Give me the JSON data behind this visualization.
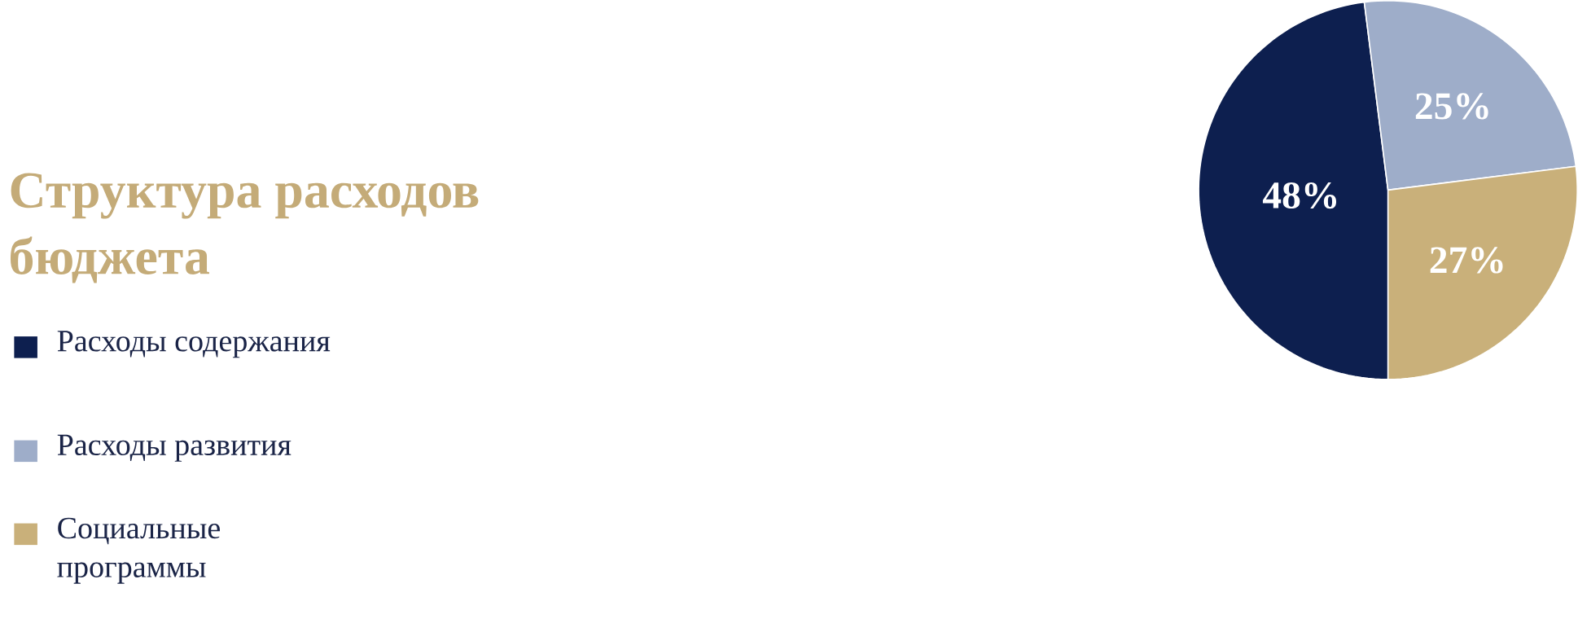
{
  "chart_data": {
    "type": "pie",
    "title": "Структура расходов бюджета",
    "categories": [
      "Расходы содержания",
      "Расходы развития",
      "Социальные программы"
    ],
    "values": [
      48,
      25,
      27
    ],
    "colors": [
      "#0d1f4f",
      "#9eadc9",
      "#c9b07a"
    ],
    "value_labels": [
      "48%",
      "25%",
      "27%"
    ],
    "legend": "left"
  }
}
